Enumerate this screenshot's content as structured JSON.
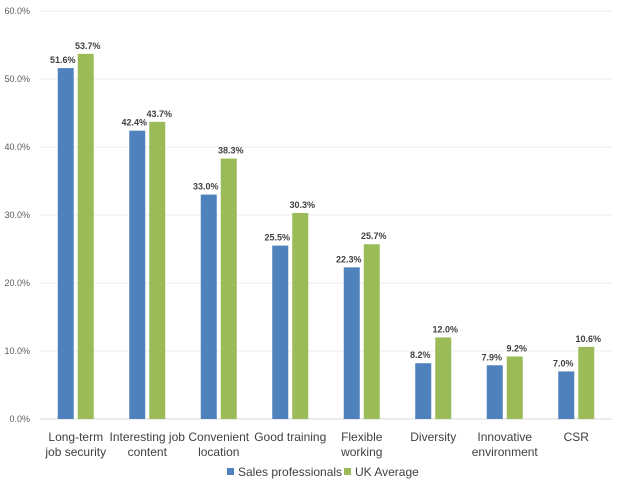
{
  "chart_data": {
    "type": "bar",
    "title": "",
    "xlabel": "",
    "ylabel": "",
    "ylim": [
      0,
      60
    ],
    "yticks": [
      "0.0%",
      "10.0%",
      "20.0%",
      "30.0%",
      "40.0%",
      "50.0%",
      "60.0%"
    ],
    "grid": true,
    "legend_position": "bottom",
    "categories": [
      [
        "Long-term",
        "job security"
      ],
      [
        "Interesting job",
        "content"
      ],
      [
        "Convenient",
        "location"
      ],
      [
        "Good training"
      ],
      [
        "Flexible",
        "working"
      ],
      [
        "Diversity"
      ],
      [
        "Innovative",
        "environment"
      ],
      [
        "CSR"
      ]
    ],
    "series": [
      {
        "name": "Sales professionals",
        "color": "#4f81bd",
        "values": [
          51.6,
          42.4,
          33.0,
          25.5,
          22.3,
          8.2,
          7.9,
          7.0
        ],
        "labels": [
          "51.6%",
          "42.4%",
          "33.0%",
          "25.5%",
          "22.3%",
          "8.2%",
          "7.9%",
          "7.0%"
        ]
      },
      {
        "name": "UK Average",
        "color": "#9bbb59",
        "values": [
          53.7,
          43.7,
          38.3,
          30.3,
          25.7,
          12.0,
          9.2,
          10.6
        ],
        "labels": [
          "53.7%",
          "43.7%",
          "38.3%",
          "30.3%",
          "25.7%",
          "12.0%",
          "9.2%",
          "10.6%"
        ]
      }
    ]
  }
}
